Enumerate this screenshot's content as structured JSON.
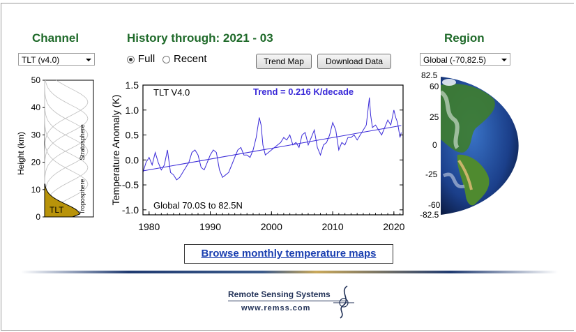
{
  "channel": {
    "heading": "Channel",
    "select_value": "TLT (v4.0)"
  },
  "history": {
    "heading": "History through: 2021 - 03",
    "radio_full": "Full",
    "radio_recent": "Recent",
    "selected": "Full",
    "trend_map_label": "Trend Map",
    "download_label": "Download Data"
  },
  "region": {
    "heading": "Region",
    "select_value": "Global (-70,82.5)",
    "lat_labels": [
      "82.5",
      "60",
      "25",
      "0",
      "-25",
      "-60",
      "-82.5"
    ]
  },
  "weighting": {
    "ylabel": "Height  (km)",
    "ticks": [
      "50",
      "40",
      "30",
      "20",
      "10",
      "0"
    ],
    "stratosphere_label": "Stratosphere",
    "troposphere_label": "Troposphere",
    "tlt_label": "TLT",
    "fill_color": "#b8930a"
  },
  "browse_link": "Browse monthly temperature maps",
  "footer": {
    "org": "Remote Sensing Systems",
    "url": "www.remss.com"
  },
  "chart_data": {
    "type": "line",
    "ylabel": "Temperature Anomaly (K)",
    "ylim": [
      -1.1,
      1.5
    ],
    "xlim": [
      1979,
      2021.5
    ],
    "yticks": [
      "1.5",
      "1.0",
      "0.5",
      "0.0",
      "-0.5",
      "-1.0"
    ],
    "xticks": [
      "1980",
      "1990",
      "2000",
      "2010",
      "2020"
    ],
    "legend_text": "TLT V4.0",
    "trend_text": "Trend =  0.216 K/decade",
    "region_text": "Global  70.0S to  82.5N",
    "series_color": "#3a2ad8",
    "trend": {
      "x": [
        1979,
        2021.2
      ],
      "y": [
        -0.22,
        0.69
      ]
    },
    "series": [
      {
        "x": [
          1979.0,
          1979.5,
          1980.0,
          1980.5,
          1981.0,
          1981.5,
          1982.0,
          1982.5,
          1983.0,
          1983.5,
          1984.0,
          1984.5,
          1985.0,
          1985.5,
          1986.0,
          1986.5,
          1987.0,
          1987.5,
          1988.0,
          1988.5,
          1989.0,
          1989.5,
          1990.0,
          1990.5,
          1991.0,
          1991.5,
          1992.0,
          1992.5,
          1993.0,
          1993.5,
          1994.0,
          1994.5,
          1995.0,
          1995.5,
          1996.0,
          1996.5,
          1997.0,
          1997.5,
          1998.0,
          1998.3,
          1998.6,
          1999.0,
          1999.5,
          2000.0,
          2000.5,
          2001.0,
          2001.5,
          2002.0,
          2002.5,
          2003.0,
          2003.5,
          2004.0,
          2004.5,
          2005.0,
          2005.5,
          2006.0,
          2006.5,
          2007.0,
          2007.5,
          2008.0,
          2008.5,
          2009.0,
          2009.5,
          2010.0,
          2010.5,
          2011.0,
          2011.5,
          2012.0,
          2012.5,
          2013.0,
          2013.5,
          2014.0,
          2014.5,
          2015.0,
          2015.5,
          2016.0,
          2016.2,
          2016.5,
          2017.0,
          2017.5,
          2018.0,
          2018.5,
          2019.0,
          2019.5,
          2020.0,
          2020.3,
          2020.6,
          2021.0,
          2021.2
        ],
        "y": [
          -0.25,
          -0.05,
          0.05,
          -0.1,
          0.15,
          -0.05,
          -0.2,
          -0.1,
          0.2,
          -0.25,
          -0.3,
          -0.4,
          -0.35,
          -0.25,
          -0.15,
          -0.05,
          0.15,
          0.2,
          0.1,
          -0.15,
          -0.2,
          -0.05,
          0.1,
          0.2,
          0.15,
          -0.2,
          -0.35,
          -0.3,
          -0.25,
          -0.1,
          0.05,
          0.2,
          0.25,
          0.1,
          0.1,
          0.05,
          0.2,
          0.45,
          0.85,
          0.7,
          0.3,
          0.1,
          0.15,
          0.2,
          0.25,
          0.3,
          0.35,
          0.45,
          0.4,
          0.5,
          0.3,
          0.35,
          0.25,
          0.5,
          0.55,
          0.3,
          0.45,
          0.6,
          0.25,
          0.1,
          0.3,
          0.35,
          0.5,
          0.75,
          0.6,
          0.2,
          0.35,
          0.3,
          0.45,
          0.45,
          0.5,
          0.4,
          0.5,
          0.6,
          0.7,
          1.25,
          0.9,
          0.65,
          0.7,
          0.6,
          0.5,
          0.65,
          0.8,
          0.7,
          1.0,
          0.85,
          0.75,
          0.45,
          0.55
        ]
      }
    ]
  }
}
